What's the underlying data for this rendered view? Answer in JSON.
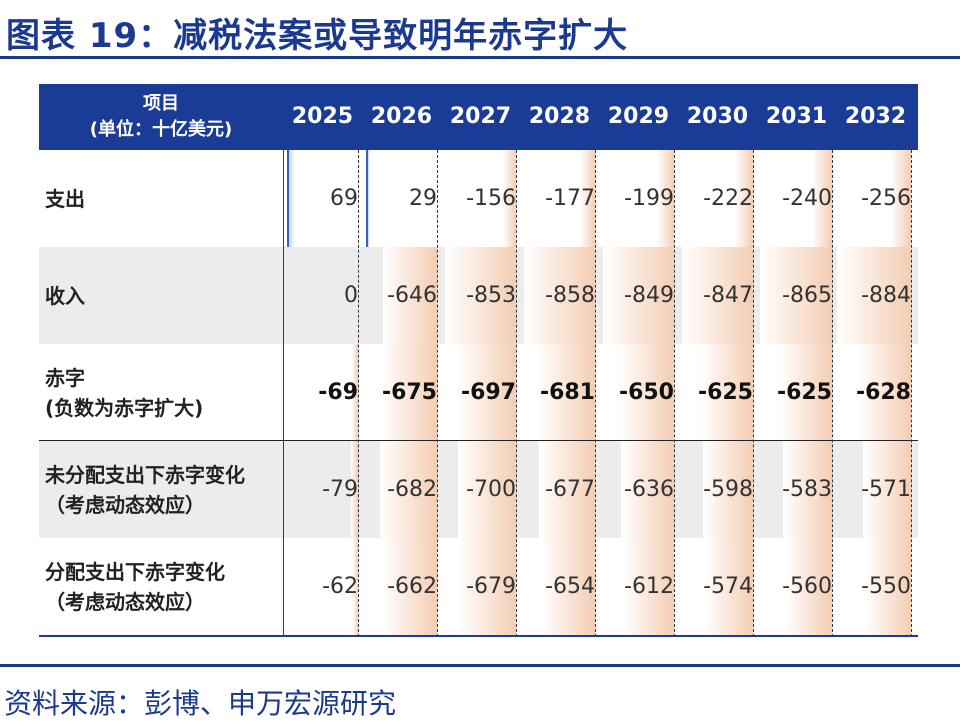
{
  "title": "图表 19：减税法案或导致明年赤字扩大",
  "source": "资料来源：彭博、申万宏源研究",
  "colors": {
    "brand": "#1b3a8f",
    "header_bg": "#1a3c97",
    "positive_bar": "#3a63b8",
    "negative_bar": "#f4cdb3",
    "row_shade": "#ececec"
  },
  "chart_data": {
    "type": "table",
    "title": "图表 19：减税法案或导致明年赤字扩大",
    "header_item_line1": "项目",
    "header_item_line2": "(单位：十亿美元)",
    "years": [
      "2025",
      "2026",
      "2027",
      "2028",
      "2029",
      "2030",
      "2031",
      "2032"
    ],
    "rows": [
      {
        "label_line1": "支出",
        "label_line2": "",
        "bold": false,
        "shaded": false,
        "values": [
          69,
          29,
          -156,
          -177,
          -199,
          -222,
          -240,
          -256
        ]
      },
      {
        "label_line1": "收入",
        "label_line2": "",
        "bold": false,
        "shaded": true,
        "values": [
          0,
          -646,
          -853,
          -858,
          -849,
          -847,
          -865,
          -884
        ]
      },
      {
        "label_line1": "赤字",
        "label_line2": "(负数为赤字扩大)",
        "bold": true,
        "shaded": false,
        "values": [
          -69,
          -675,
          -697,
          -681,
          -650,
          -625,
          -625,
          -628
        ]
      },
      {
        "label_line1": "未分配支出下赤字变化",
        "label_line2": "（考虑动态效应）",
        "bold": false,
        "shaded": true,
        "values": [
          -79,
          -682,
          -700,
          -677,
          -636,
          -598,
          -583,
          -571
        ]
      },
      {
        "label_line1": "分配支出下赤字变化",
        "label_line2": "（考虑动态效应）",
        "bold": false,
        "shaded": false,
        "values": [
          -62,
          -662,
          -679,
          -654,
          -612,
          -574,
          -560,
          -550
        ]
      }
    ]
  }
}
